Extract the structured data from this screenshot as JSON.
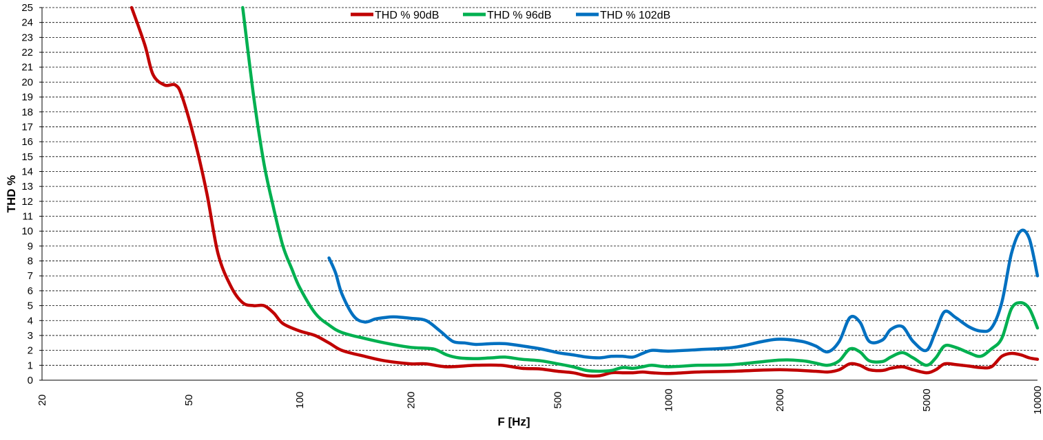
{
  "chart_data": {
    "type": "line",
    "xlabel": "F [Hz]",
    "ylabel": "THD %",
    "xscale": "log",
    "xlim": [
      20,
      10000
    ],
    "ylim": [
      0,
      25
    ],
    "x_ticks": [
      20,
      50,
      100,
      200,
      500,
      1000,
      2000,
      5000,
      10000
    ],
    "y_ticks": [
      0,
      1,
      2,
      3,
      4,
      5,
      6,
      7,
      8,
      9,
      10,
      11,
      12,
      13,
      14,
      15,
      16,
      17,
      18,
      19,
      20,
      21,
      22,
      23,
      24,
      25
    ],
    "grid": "horizontal dashed",
    "legend_position": "top-center",
    "series": [
      {
        "name": "THD % 90dB",
        "color": "#c00000",
        "x": [
          35,
          38,
          40,
          43,
          46,
          48,
          52,
          56,
          60,
          65,
          70,
          75,
          80,
          85,
          90,
          100,
          110,
          120,
          130,
          150,
          170,
          200,
          220,
          250,
          300,
          350,
          400,
          450,
          500,
          550,
          600,
          650,
          700,
          750,
          800,
          850,
          900,
          1000,
          1200,
          1500,
          2000,
          2500,
          2700,
          2900,
          3100,
          3300,
          3500,
          3800,
          4000,
          4300,
          4600,
          5000,
          5300,
          5600,
          6000,
          6500,
          7000,
          7500,
          8000,
          8500,
          9000,
          9500,
          10000
        ],
        "y": [
          25,
          22.5,
          20.5,
          19.8,
          19.8,
          19,
          16,
          12.5,
          8.5,
          6.3,
          5.2,
          5,
          5,
          4.5,
          3.8,
          3.3,
          3,
          2.5,
          2,
          1.6,
          1.3,
          1.1,
          1.1,
          0.9,
          1,
          1,
          0.8,
          0.75,
          0.6,
          0.5,
          0.3,
          0.3,
          0.5,
          0.5,
          0.5,
          0.55,
          0.5,
          0.45,
          0.55,
          0.6,
          0.7,
          0.6,
          0.55,
          0.7,
          1.1,
          1.0,
          0.7,
          0.65,
          0.8,
          0.9,
          0.7,
          0.5,
          0.7,
          1.1,
          1.05,
          0.95,
          0.85,
          0.9,
          1.6,
          1.8,
          1.7,
          1.5,
          1.4
        ]
      },
      {
        "name": "THD % 96dB",
        "color": "#00b050",
        "x": [
          70,
          75,
          80,
          85,
          90,
          95,
          100,
          110,
          120,
          130,
          150,
          170,
          200,
          230,
          250,
          270,
          300,
          330,
          360,
          400,
          450,
          500,
          550,
          600,
          650,
          700,
          750,
          800,
          850,
          900,
          1000,
          1200,
          1500,
          2000,
          2300,
          2500,
          2700,
          2900,
          3100,
          3300,
          3500,
          3800,
          4000,
          4300,
          4600,
          5000,
          5300,
          5600,
          6000,
          6500,
          7000,
          7500,
          8000,
          8500,
          9000,
          9500,
          10000
        ],
        "y": [
          25,
          19,
          14.5,
          11.5,
          9,
          7.5,
          6.2,
          4.5,
          3.7,
          3.2,
          2.8,
          2.5,
          2.2,
          2.1,
          1.7,
          1.5,
          1.45,
          1.5,
          1.55,
          1.4,
          1.3,
          1.1,
          0.9,
          0.65,
          0.6,
          0.65,
          0.85,
          0.8,
          0.9,
          1.0,
          0.9,
          1.0,
          1.05,
          1.35,
          1.3,
          1.15,
          1.0,
          1.3,
          2.1,
          1.9,
          1.3,
          1.25,
          1.55,
          1.85,
          1.5,
          1.0,
          1.5,
          2.3,
          2.2,
          1.85,
          1.6,
          2.1,
          2.8,
          4.8,
          5.2,
          4.8,
          3.5
        ]
      },
      {
        "name": "THD % 102dB",
        "color": "#0070c0",
        "x": [
          120,
          125,
          130,
          140,
          150,
          160,
          170,
          180,
          200,
          220,
          240,
          260,
          280,
          300,
          330,
          360,
          400,
          450,
          500,
          550,
          600,
          650,
          700,
          750,
          800,
          850,
          900,
          1000,
          1200,
          1500,
          1800,
          2000,
          2300,
          2500,
          2700,
          2900,
          3100,
          3300,
          3500,
          3800,
          4000,
          4300,
          4600,
          5000,
          5300,
          5600,
          6000,
          6500,
          7000,
          7500,
          8000,
          8500,
          9000,
          9500,
          10000
        ],
        "y": [
          8.2,
          7.2,
          5.8,
          4.3,
          3.9,
          4.1,
          4.2,
          4.25,
          4.15,
          4.0,
          3.3,
          2.6,
          2.5,
          2.4,
          2.45,
          2.45,
          2.3,
          2.1,
          1.85,
          1.7,
          1.55,
          1.5,
          1.6,
          1.6,
          1.55,
          1.8,
          2.0,
          1.95,
          2.05,
          2.2,
          2.6,
          2.75,
          2.6,
          2.3,
          1.9,
          2.6,
          4.2,
          3.9,
          2.6,
          2.7,
          3.4,
          3.6,
          2.6,
          2.0,
          3.3,
          4.6,
          4.2,
          3.6,
          3.3,
          3.5,
          5.2,
          8.5,
          10.0,
          9.5,
          7.0
        ]
      }
    ]
  }
}
